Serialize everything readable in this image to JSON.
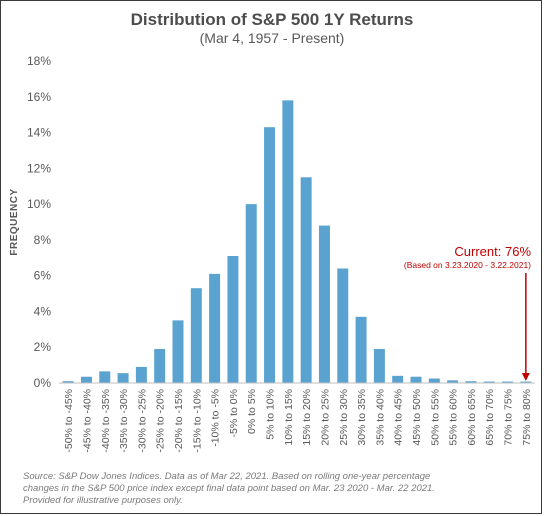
{
  "chart_data": {
    "type": "bar",
    "title": "Distribution of S&P 500 1Y Returns",
    "subtitle": "(Mar 4, 1957 - Present)",
    "xlabel": "",
    "ylabel": "FREQUENCY",
    "ylim": [
      0,
      18
    ],
    "yticks": [
      0,
      2,
      4,
      6,
      8,
      10,
      12,
      14,
      16,
      18
    ],
    "ytick_labels": [
      "0%",
      "2%",
      "4%",
      "6%",
      "8%",
      "10%",
      "12%",
      "14%",
      "16%",
      "18%"
    ],
    "grid": false,
    "legend": false,
    "categories": [
      "-50% to -45%",
      "-45% to -40%",
      "-40% to -35%",
      "-35% to -30%",
      "-30% to -25%",
      "-25% to -20%",
      "-20% to -15%",
      "-15% to -10%",
      "-10% to -5%",
      "-5% to 0%",
      "0% to 5%",
      "5% to 10%",
      "10% to 15%",
      "15% to 20%",
      "20% to 25%",
      "25% to 30%",
      "30% to 35%",
      "35% to 40%",
      "40% to 45%",
      "45% to 50%",
      "50% to 55%",
      "55% to 60%",
      "60% to 65%",
      "65% to 70%",
      "70% to 75%",
      "75% to 80%"
    ],
    "values": [
      0.1,
      0.35,
      0.65,
      0.55,
      0.9,
      1.9,
      3.5,
      5.3,
      6.1,
      7.1,
      10.0,
      14.3,
      15.8,
      11.5,
      8.8,
      6.4,
      3.7,
      1.9,
      0.4,
      0.35,
      0.25,
      0.15,
      0.1,
      0.08,
      0.08,
      0.08
    ],
    "color": "#5aa3d0",
    "annotation": {
      "label": "Current: 76%",
      "sublabel": "(Based on 3.23.2020 - 3.22.2021)",
      "color": "#c00000",
      "target_category": "75% to 80%"
    },
    "source": [
      "Source: S&P Dow Jones Indices.  Data as of Mar 22, 2021.  Based on rolling one-year percentage",
      "changes in the S&P 500 price index except final data point based on Mar. 23 2020 - Mar. 22 2021.",
      "Provided for illustrative purposes only."
    ]
  }
}
